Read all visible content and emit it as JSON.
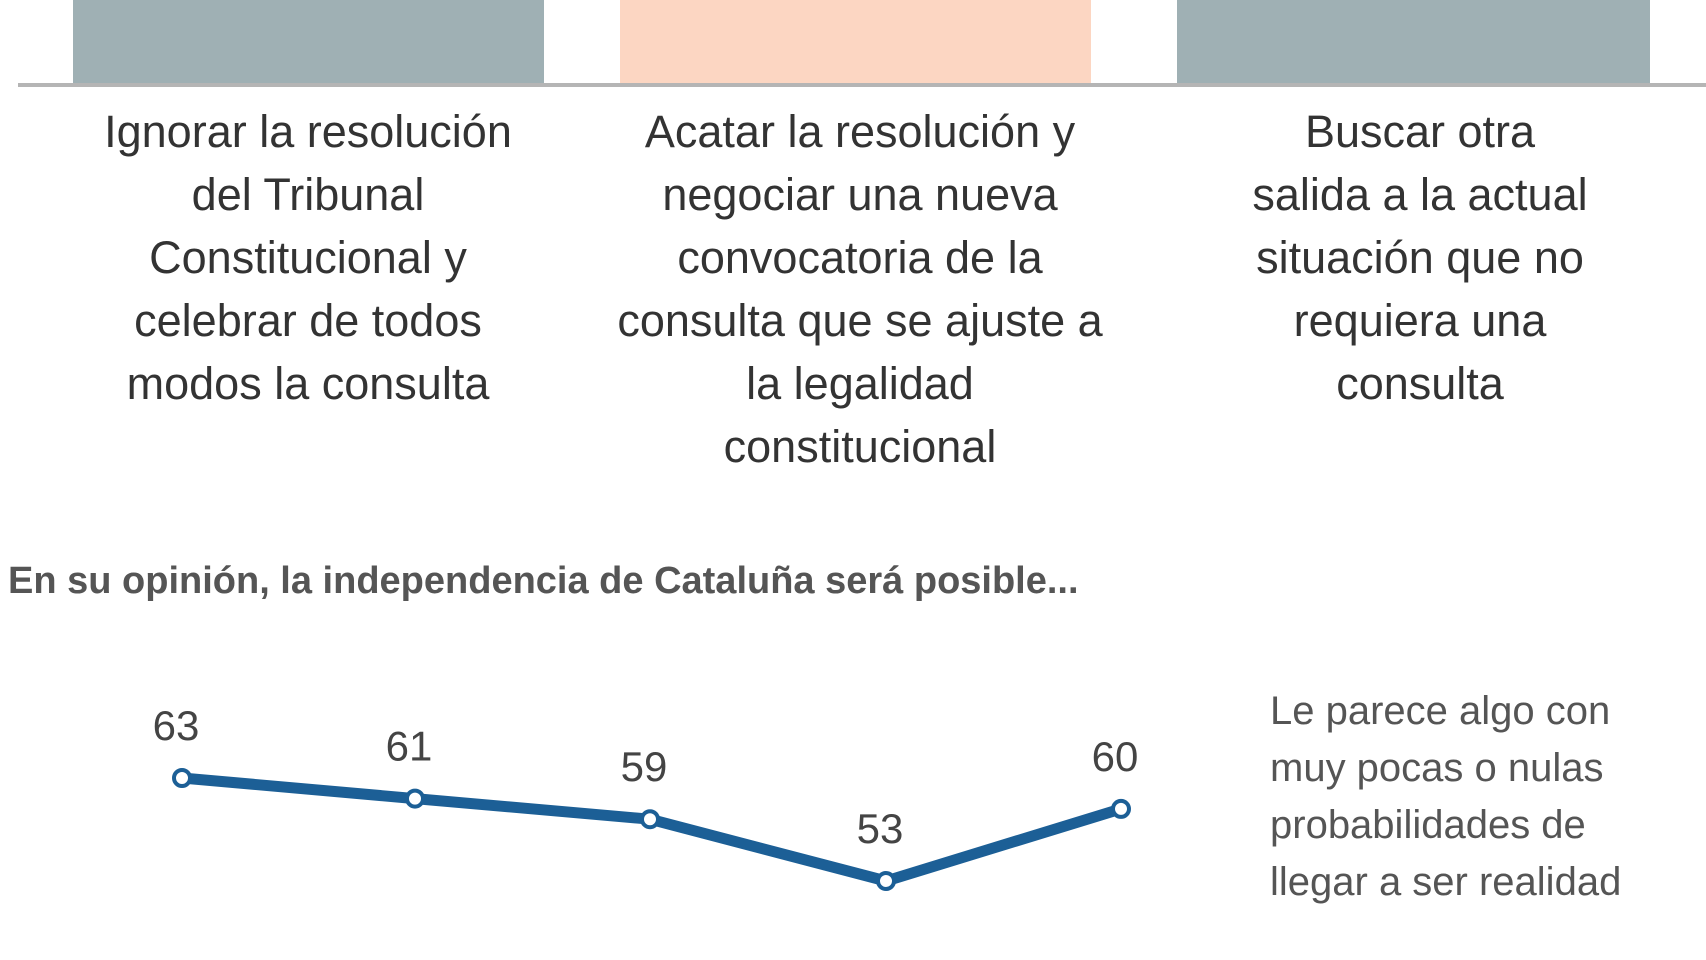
{
  "chart_data": [
    {
      "type": "bar",
      "categories": [
        "Ignorar la resolución del Tribunal Constitucional y celebrar de todos modos la consulta",
        "Acatar la resolución y negociar una nueva convocatoria de la consulta que se ajuste a la legalidad constitucional",
        "Buscar otra salida a la actual situación que no requiera una consulta"
      ],
      "category_lines": [
        "Ignorar la resolución\ndel Tribunal\nConstitucional y\ncelebrar de todos\nmodos la consulta",
        "Acatar la resolución y\nnegociar una nueva\nconvocatoria de la\nconsulta que se ajuste a\nla legalidad\nconstitucional",
        "Buscar otra\nsalida a la actual\nsituación que no\nrequiera una\nconsulta"
      ],
      "colors": [
        "#9fb0b4",
        "#fcd6c2",
        "#9fb0b4"
      ]
    },
    {
      "type": "line",
      "title": "En su opinión, la independencia de Cataluña será posible...",
      "series": [
        {
          "name": "Le parece algo con muy pocas o nulas probabilidades de llegar a ser realidad",
          "name_lines": "Le parece algo con\nmuy pocas o nulas\nprobabilidades de\nllegar a ser realidad",
          "values": [
            63,
            61,
            59,
            53,
            60
          ],
          "labels": [
            "63",
            "61",
            "59",
            "53",
            "60"
          ],
          "color": "#1c5f96"
        }
      ]
    }
  ]
}
